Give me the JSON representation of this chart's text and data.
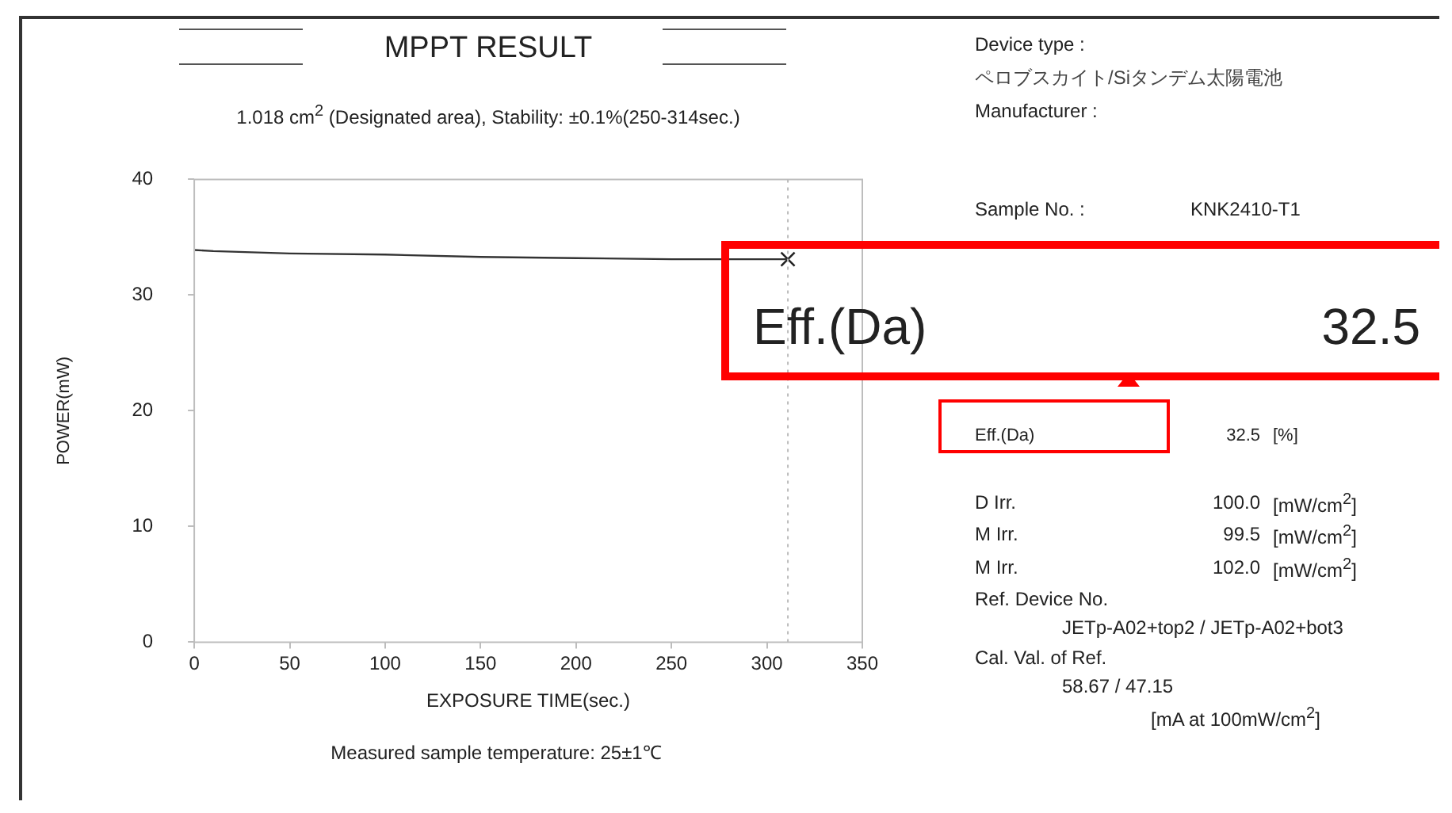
{
  "chart_data": {
    "type": "line",
    "title": "MPPT RESULT",
    "subtitle": "1.018 cm$^{2}$ (Designated area), Stability: ±0.1%(250-314sec.)",
    "xlabel": "EXPOSURE TIME(sec.)",
    "ylabel": "POWER(mW)",
    "x": [
      0,
      10,
      50,
      100,
      150,
      200,
      250,
      311
    ],
    "series": [
      {
        "color": "#333333",
        "values": [
          33.9,
          33.8,
          33.6,
          33.5,
          33.3,
          33.2,
          33.1,
          33.1
        ],
        "marker": "none"
      },
      {
        "type": "scatter",
        "x": [
          311
        ],
        "color": "#222222",
        "values": [
          33.1
        ],
        "marker": "cross"
      }
    ],
    "xlim": [
      0,
      350
    ],
    "xticks": [
      0,
      50,
      100,
      150,
      200,
      250,
      300,
      350
    ],
    "ylim": [
      0,
      40
    ],
    "yticks": [
      0,
      10,
      20,
      30,
      40
    ],
    "grid": false,
    "legend": false,
    "ref_lines": [
      {
        "axis": "x",
        "value": 311,
        "color": "#bbbbbb",
        "line_style": "dotted"
      }
    ],
    "annotations": [
      "Measured sample temperature: 25±1℃",
      "Device type :",
      "ペロブスカイト/Siタンデム太陽電池",
      "Manufacturer :",
      "Sample No. :",
      "KNK2410-T1",
      "Eff.(Da)",
      "32.5",
      "Eff.(Da)",
      "32.5",
      "[%]",
      "D Irr.",
      "100.0",
      "[mW/cm$^{2}$]",
      "M Irr.",
      "99.5",
      "[mW/cm$^{2}$]",
      "M Irr.",
      "102.0",
      "[mW/cm$^{2}$]",
      "Ref. Device No.",
      "JETp-A02+top2 / JETp-A02+bot3",
      "Cal. Val. of Ref.",
      "58.67 / 47.15",
      "[mA at 100mW/cm$^{2}$]"
    ]
  }
}
